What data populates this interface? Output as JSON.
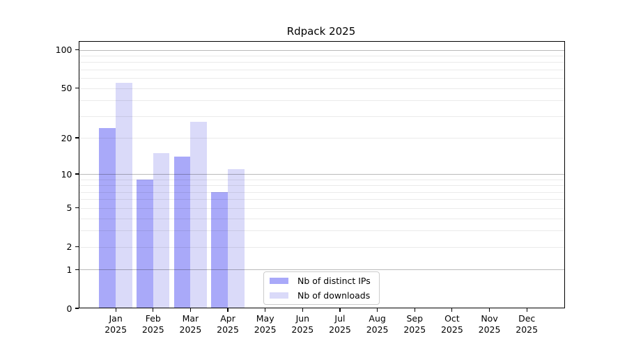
{
  "title": "Rdpack 2025",
  "chart_data": {
    "type": "bar",
    "title": "Rdpack 2025",
    "categories": [
      "Jan",
      "Feb",
      "Mar",
      "Apr",
      "May",
      "Jun",
      "Jul",
      "Aug",
      "Sep",
      "Oct",
      "Nov",
      "Dec"
    ],
    "x_year_label": "2025",
    "series": [
      {
        "name": "Nb of distinct IPs",
        "color": "#a9a9f9",
        "values": [
          24,
          9,
          14,
          7,
          0,
          0,
          0,
          0,
          0,
          0,
          0,
          0
        ]
      },
      {
        "name": "Nb of downloads",
        "color": "#dadaf9",
        "values": [
          55,
          15,
          27,
          11,
          0,
          0,
          0,
          0,
          0,
          0,
          0,
          0
        ]
      }
    ],
    "xlabel": "",
    "ylabel": "",
    "y_scale": "log1p",
    "ylim": [
      0,
      115
    ],
    "y_ticks": [
      0,
      1,
      2,
      5,
      10,
      20,
      50,
      100
    ],
    "y_major_gridlines": [
      1,
      10,
      100
    ],
    "y_minor_gridlines": [
      2,
      3,
      4,
      5,
      6,
      7,
      8,
      9,
      20,
      30,
      40,
      50,
      60,
      70,
      80,
      90
    ],
    "grid": true,
    "legend_position": "lower center"
  },
  "legend": {
    "items": [
      {
        "label": "Nb of distinct IPs",
        "color": "#a9a9f9"
      },
      {
        "label": "Nb of downloads",
        "color": "#dadaf9"
      }
    ]
  }
}
